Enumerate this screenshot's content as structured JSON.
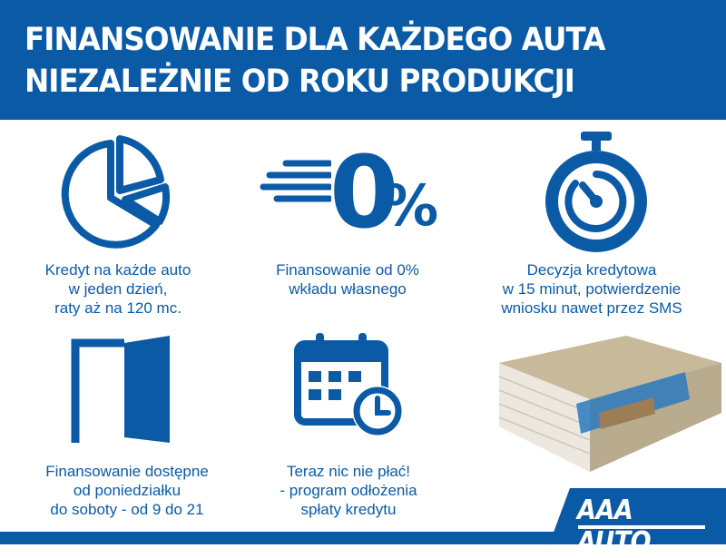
{
  "header": {
    "line1": "FINANSOWANIE DLA KAŻDEGO AUTA",
    "line2": "NIEZALEŻNIE OD ROKU PRODUKCJI"
  },
  "features": [
    {
      "icon": "pie-chart-icon",
      "lines": [
        "Kredyt na każde auto",
        "w jeden dzień,",
        "raty aż na 120 mc."
      ]
    },
    {
      "icon": "zero-percent-icon",
      "lines": [
        "Finansowanie od 0%",
        "wkładu własnego"
      ]
    },
    {
      "icon": "stopwatch-icon",
      "lines": [
        "Decyzja kredytowa",
        "w 15 minut, potwierdzenie",
        "wniosku nawet przez SMS"
      ]
    },
    {
      "icon": "open-door-icon",
      "lines": [
        "Finansowanie dostępne",
        "od poniedziałku",
        "do soboty - od 9 do 21"
      ]
    },
    {
      "icon": "calendar-clock-icon",
      "lines": [
        "Teraz nic nie płać!",
        "- program odłożenia",
        "spłaty kredytu"
      ]
    }
  ],
  "zero_icon_text": {
    "zero": "0",
    "percent": "%"
  },
  "logo": "AAA AUTO",
  "colors": {
    "brand_blue": "#0b5aa6",
    "white": "#ffffff"
  }
}
